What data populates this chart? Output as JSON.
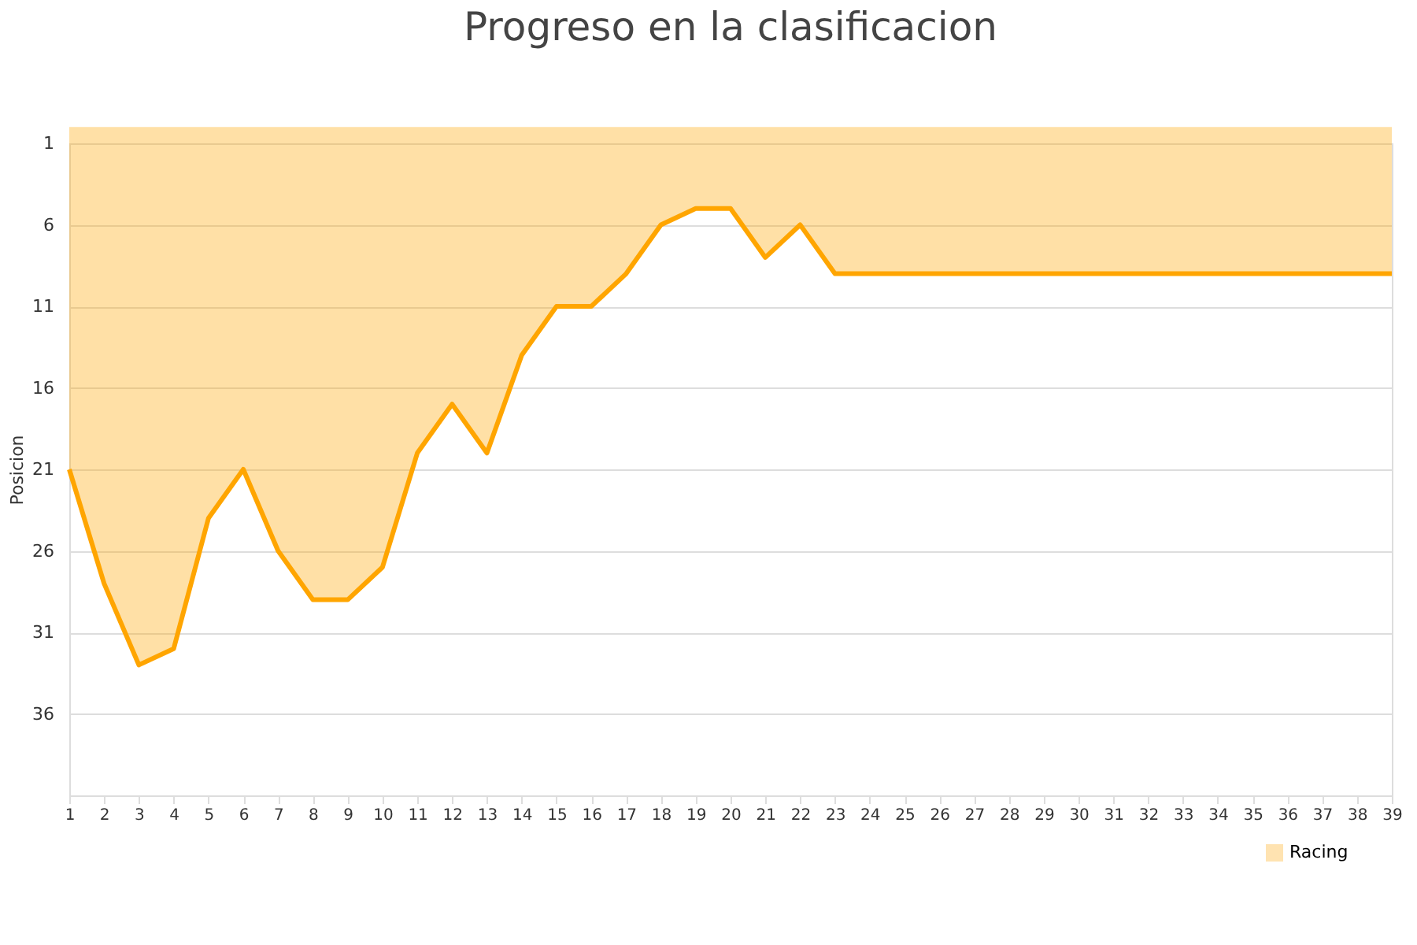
{
  "chart_data": {
    "type": "area",
    "title": "Progreso en la clasificacion",
    "ylabel": "Posicion",
    "x": [
      1,
      2,
      3,
      4,
      5,
      6,
      7,
      8,
      9,
      10,
      11,
      12,
      13,
      14,
      15,
      16,
      17,
      18,
      19,
      20,
      21,
      22,
      23,
      24,
      25,
      26,
      27,
      28,
      29,
      30,
      31,
      32,
      33,
      34,
      35,
      36,
      37,
      38,
      39
    ],
    "xlim": [
      1,
      39
    ],
    "xticks": [
      1,
      2,
      3,
      4,
      5,
      6,
      7,
      8,
      9,
      10,
      11,
      12,
      13,
      14,
      15,
      16,
      17,
      18,
      19,
      20,
      21,
      22,
      23,
      24,
      25,
      26,
      27,
      28,
      29,
      30,
      31,
      32,
      33,
      34,
      35,
      36,
      37,
      38,
      39
    ],
    "ylim": [
      41,
      1
    ],
    "yticks": [
      1,
      6,
      11,
      16,
      21,
      26,
      31,
      36
    ],
    "series": [
      {
        "name": "Racing",
        "color": "#ffa500",
        "values": [
          21,
          28,
          33,
          32,
          24,
          21,
          26,
          29,
          29,
          27,
          20,
          17,
          20,
          14,
          11,
          11,
          9,
          6,
          5,
          5,
          8,
          6,
          9,
          9,
          9,
          9,
          9,
          9,
          9,
          9,
          9,
          9,
          9,
          9,
          9,
          9,
          9,
          9,
          9
        ]
      }
    ],
    "grid": "y",
    "legend": "bottom right"
  }
}
